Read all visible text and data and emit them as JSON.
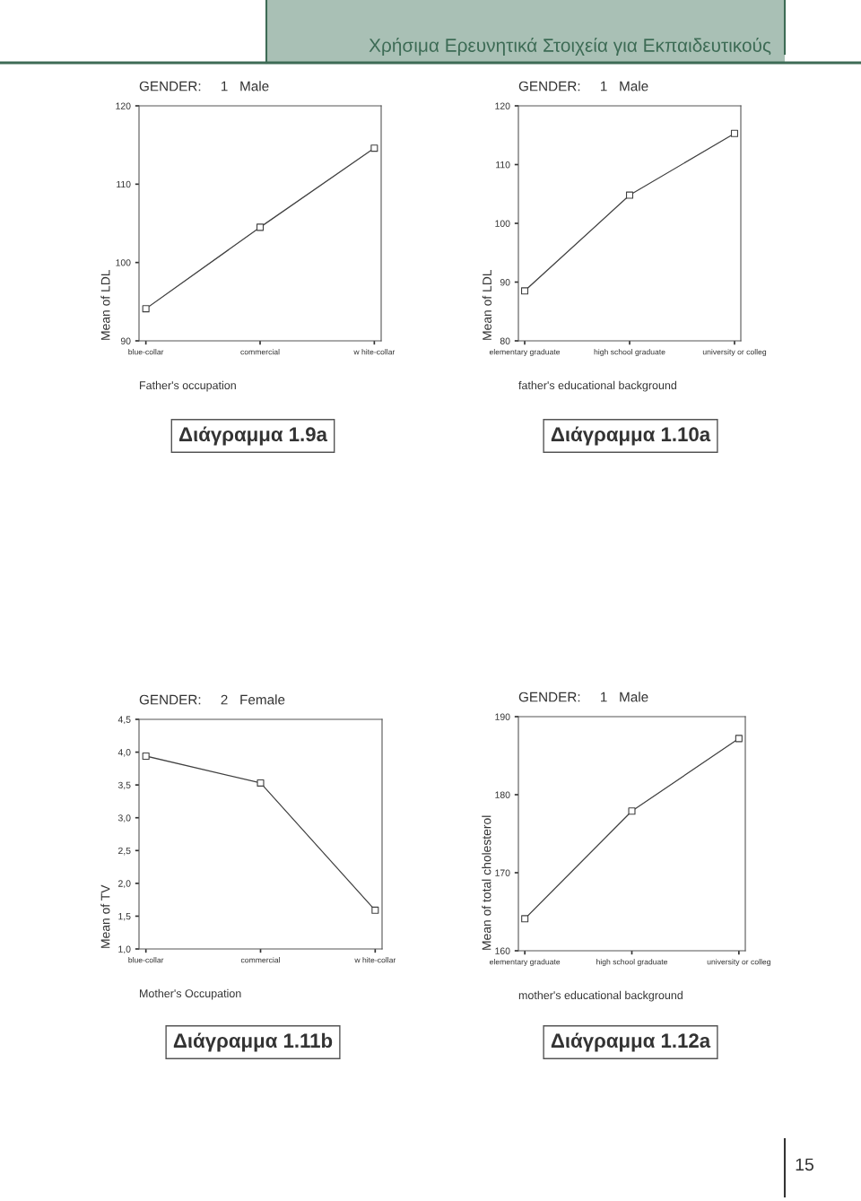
{
  "chart_data": [
    {
      "type": "line",
      "title": "GENDER:     1   Male",
      "xlabel": "Father's occupation",
      "ylabel": "Mean of LDL",
      "categories": [
        "blue-collar",
        "commercial",
        "w hite-collar"
      ],
      "values": [
        94.1,
        104.5,
        114.6
      ],
      "color": "#404040",
      "marker": "square",
      "ylim": [
        90,
        120
      ],
      "yticks": [
        90,
        100,
        110,
        120
      ],
      "grid": false,
      "annotations": [
        "Διάγραμμα 1.9a",
        "Χρήσιμα Ερευνητικά Στοιχεία για Εκπαιδευτικούς"
      ]
    },
    {
      "type": "line",
      "title": "GENDER:     1   Male",
      "xlabel": "father's educational background",
      "ylabel": "Mean of LDL",
      "categories": [
        "elementary graduate",
        "high school graduate",
        "university or colleg"
      ],
      "values": [
        88.5,
        104.8,
        115.3
      ],
      "color": "#404040",
      "marker": "square",
      "ylim": [
        80,
        120
      ],
      "yticks": [
        80,
        90,
        100,
        110,
        120
      ],
      "grid": false,
      "annotations": [
        "Διάγραμμα 1.10a"
      ]
    },
    {
      "type": "line",
      "title": "GENDER:     2   Female",
      "xlabel": "Mother's Occupation",
      "ylabel": "Mean of TV",
      "categories": [
        "blue-collar",
        "commercial",
        "w hite-collar"
      ],
      "values": [
        3.94,
        3.53,
        1.59
      ],
      "color": "#404040",
      "marker": "square",
      "ylim": [
        1.0,
        4.5
      ],
      "yticks": [
        {
          "value": 1.0,
          "label": "1,0"
        },
        {
          "value": 1.5,
          "label": "1,5"
        },
        {
          "value": 2.0,
          "label": "2,0"
        },
        {
          "value": 2.5,
          "label": "2,5"
        },
        {
          "value": 3.0,
          "label": "3,0"
        },
        {
          "value": 3.5,
          "label": "3,5"
        },
        {
          "value": 4.0,
          "label": "4,0"
        },
        {
          "value": 4.5,
          "label": "4,5"
        }
      ],
      "grid": false,
      "annotations": [
        "Διάγραμμα 1.11b"
      ]
    },
    {
      "type": "line",
      "title": "GENDER:     1   Male",
      "xlabel": "mother's educational background",
      "ylabel": "Mean of total cholesterol",
      "categories": [
        "elementary graduate",
        "high school graduate",
        "university or colleg"
      ],
      "values": [
        164.1,
        177.9,
        187.2
      ],
      "color": "#404040",
      "marker": "square",
      "ylim": [
        160,
        190
      ],
      "yticks": [
        160,
        170,
        180,
        190
      ],
      "grid": false,
      "annotations": [
        "Διάγραμμα 1.12a",
        "15"
      ]
    }
  ]
}
